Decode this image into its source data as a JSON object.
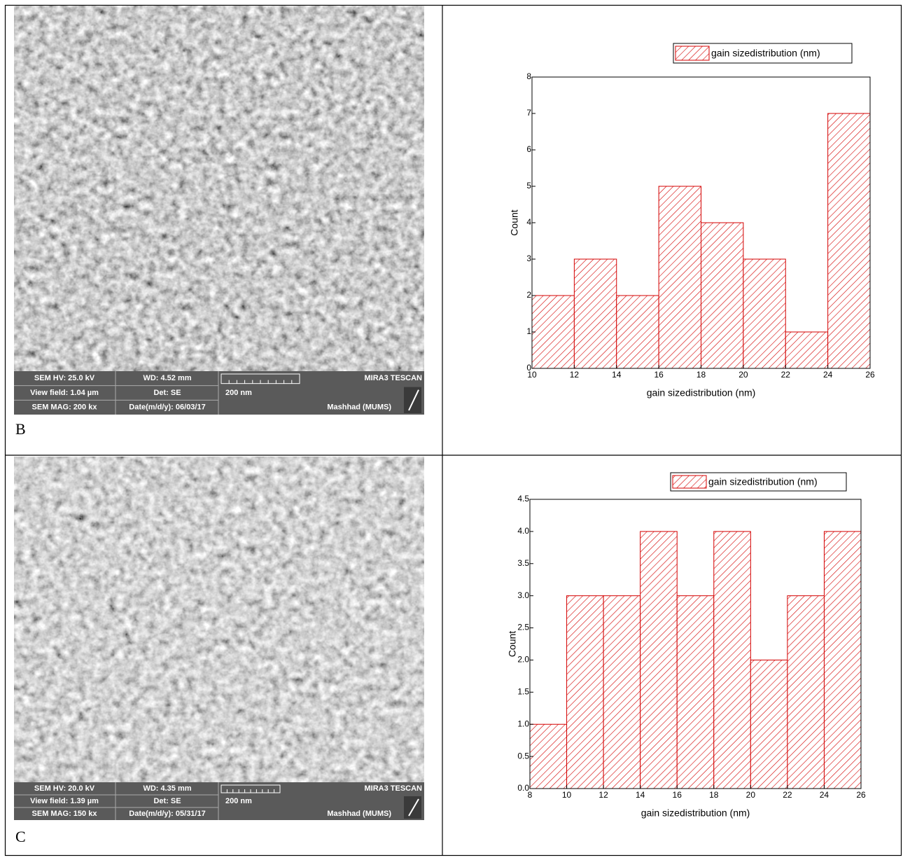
{
  "chart_data": [
    {
      "type": "histogram",
      "xlabel": "gain sizedistribution (nm)",
      "ylabel": "Count",
      "bins": [
        10,
        12,
        14,
        16,
        18,
        20,
        22,
        24,
        26
      ],
      "series": [
        {
          "name": "gain sizedistribution (nm)",
          "color": "#d40000",
          "values": [
            2,
            3,
            2,
            5,
            4,
            3,
            1,
            7
          ]
        }
      ],
      "xlim": [
        10,
        26
      ],
      "xticks": [
        10,
        12,
        14,
        16,
        18,
        20,
        22,
        24,
        26
      ],
      "ylim": [
        0,
        8
      ],
      "yticks": [
        0,
        1,
        2,
        3,
        4,
        5,
        6,
        7,
        8
      ],
      "legend": "top-right"
    },
    {
      "type": "histogram",
      "xlabel": "gain sizedistribution (nm)",
      "ylabel": "Count",
      "bins": [
        8,
        10,
        12,
        14,
        16,
        18,
        20,
        22,
        24,
        26
      ],
      "series": [
        {
          "name": "gain sizedistribution (nm)",
          "color": "#d40000",
          "values": [
            1,
            3,
            3,
            4,
            3,
            4,
            2,
            3,
            4
          ]
        }
      ],
      "xlim": [
        8,
        26
      ],
      "xticks": [
        8,
        10,
        12,
        14,
        16,
        18,
        20,
        22,
        24,
        26
      ],
      "ylim": [
        0,
        4.5
      ],
      "yticks": [
        {
          "value": 0,
          "label": "0.0"
        },
        0.5,
        {
          "value": 1,
          "label": "1.0"
        },
        1.5,
        {
          "value": 2,
          "label": "2.0"
        },
        2.5,
        {
          "value": 3,
          "label": "3.0"
        },
        3.5,
        {
          "value": 4,
          "label": "4.0"
        },
        4.5
      ],
      "legend": "top-right"
    }
  ],
  "sem_images": [
    {
      "label": "B",
      "hv": "SEM HV: 25.0 kV",
      "wd": "WD: 4.52 mm",
      "brand": "MIRA3 TESCAN",
      "view_field": "View field: 1.04 µm",
      "det": "Det: SE",
      "scale": "200 nm",
      "mag": "SEM MAG: 200 kx",
      "date": "Date(m/d/y): 06/03/17",
      "location": "Mashhad (MUMS)"
    },
    {
      "label": "C",
      "hv": "SEM HV: 20.0 kV",
      "wd": "WD: 4.35 mm",
      "brand": "MIRA3 TESCAN",
      "view_field": "View field: 1.39 µm",
      "det": "Det: SE",
      "scale": "200 nm",
      "mag": "SEM MAG: 150 kx",
      "date": "Date(m/d/y): 05/31/17",
      "location": "Mashhad (MUMS)"
    }
  ]
}
